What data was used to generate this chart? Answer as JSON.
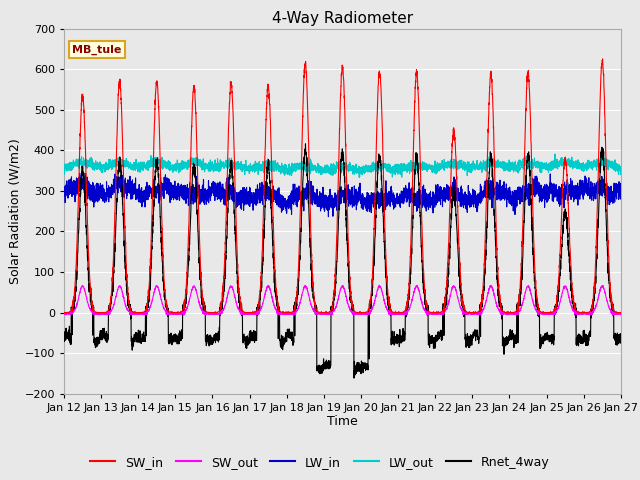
{
  "title": "4-Way Radiometer",
  "xlabel": "Time",
  "ylabel": "Solar Radiation (W/m2)",
  "ylim": [
    -200,
    700
  ],
  "yticks": [
    -200,
    -100,
    0,
    100,
    200,
    300,
    400,
    500,
    600,
    700
  ],
  "num_days": 15,
  "station_label": "MB_tule",
  "x_tick_labels": [
    "Jan 12",
    "Jan 13",
    "Jan 14",
    "Jan 15",
    "Jan 16",
    "Jan 17",
    "Jan 18",
    "Jan 19",
    "Jan 20",
    "Jan 21",
    "Jan 22",
    "Jan 23",
    "Jan 24",
    "Jan 25",
    "Jan 26",
    "Jan 27"
  ],
  "colors": {
    "SW_in": "#ff0000",
    "SW_out": "#ff00ff",
    "LW_in": "#0000cc",
    "LW_out": "#00cccc",
    "Rnet_4way": "#000000"
  },
  "SW_in_peaks": [
    535,
    570,
    570,
    555,
    565,
    560,
    615,
    605,
    595,
    590,
    450,
    585,
    590,
    380,
    620
  ],
  "plot_bg_color": "#e8e8e8",
  "axes_bg_color": "#e8e8e8",
  "grid_color": "#ffffff",
  "title_fontsize": 11,
  "label_fontsize": 9,
  "tick_fontsize": 8,
  "legend_fontsize": 9
}
